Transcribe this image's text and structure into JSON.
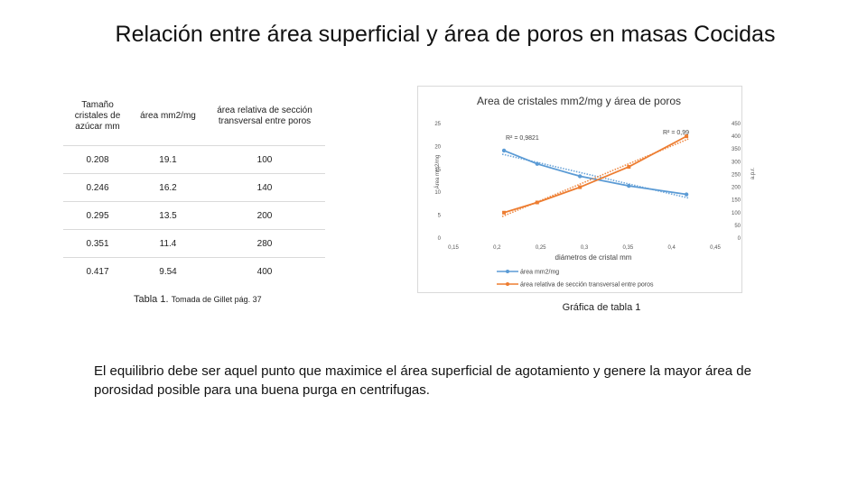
{
  "title": "Relación entre área superficial y área de poros en masas Cocidas",
  "table": {
    "headers": [
      "Tamaño cristales de azúcar  mm",
      "área mm2/mg",
      "área relativa de sección transversal entre poros"
    ],
    "rows": [
      [
        "0.208",
        "19.1",
        "100"
      ],
      [
        "0.246",
        "16.2",
        "140"
      ],
      [
        "0.295",
        "13.5",
        "200"
      ],
      [
        "0.351",
        "11.4",
        "280"
      ],
      [
        "0.417",
        "9.54",
        "400"
      ]
    ],
    "caption_main": "Tabla 1.",
    "caption_source": "Tomada de Gillet pág. 37"
  },
  "chart_caption": "Gráfica de tabla 1",
  "conclusion": "El equilibrio debe ser aquel punto que maximice el área superficial de agotamiento y genere la mayor área de porosidad posible para una buena purga en centrifugas.",
  "chart_data": {
    "type": "line",
    "title": "Area de cristales mm2/mg y área de poros",
    "xlabel": "diámetros de cristal mm",
    "ylabel_left": "Área mm2/mg",
    "ylabel_right": "a.p.r.",
    "xlim": [
      0.15,
      0.45
    ],
    "ylim_left": [
      0,
      25
    ],
    "ylim_right": [
      0,
      450
    ],
    "x_ticks": [
      "0,15",
      "0,2",
      "0,25",
      "0,3",
      "0,35",
      "0,4",
      "0,45"
    ],
    "y_left_ticks": [
      "0",
      "5",
      "10",
      "15",
      "20",
      "25"
    ],
    "y_right_ticks": [
      "0",
      "50",
      "100",
      "150",
      "200",
      "250",
      "300",
      "350",
      "400",
      "450"
    ],
    "x": [
      0.208,
      0.246,
      0.295,
      0.351,
      0.417
    ],
    "series": [
      {
        "name": "área mm2/mg",
        "axis": "left",
        "values": [
          19.1,
          16.2,
          13.5,
          11.4,
          9.54
        ],
        "color": "#5b9bd5",
        "r2": "R² = 0,9821",
        "r2_value": 0.9821
      },
      {
        "name": "área relativa de sección transversal entre poros",
        "axis": "right",
        "values": [
          100,
          140,
          200,
          280,
          400
        ],
        "color": "#ed7d31",
        "r2": "R² = 0,99",
        "r2_value": 0.99
      }
    ],
    "legend_position": "bottom",
    "grid": false
  }
}
